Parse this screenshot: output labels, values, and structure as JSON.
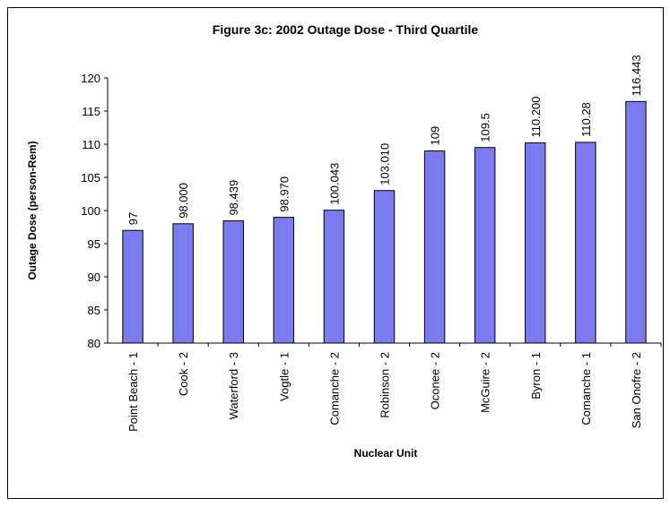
{
  "chart_data": {
    "type": "bar",
    "title": "Figure 3c: 2002 Outage Dose - Third Quartile",
    "x_label": "Nuclear Unit",
    "y_label": "Outage Dose (person-Rem)",
    "categories": [
      "Point Beach - 1",
      "Cook - 2",
      "Waterford - 3",
      "Vogtle - 1",
      "Comanche - 2",
      "Robinson - 2",
      "Oconee - 2",
      "McGuire - 2",
      "Byron - 1",
      "Comanche - 1",
      "San Onofre - 2"
    ],
    "values": [
      97,
      98,
      98.439,
      98.97,
      100.043,
      103.01,
      109,
      109.5,
      110.2,
      110.28,
      116.443
    ],
    "value_labels": [
      "97",
      "98.000",
      "98.439",
      "98.970",
      "100.043",
      "103.010",
      "109",
      "109.5",
      "110.200",
      "110.28",
      "116.443"
    ],
    "color": "#7b7bef",
    "ylim": [
      80,
      120
    ],
    "yticks": [
      80,
      85,
      90,
      95,
      100,
      105,
      110,
      115,
      120
    ],
    "grid": false
  }
}
